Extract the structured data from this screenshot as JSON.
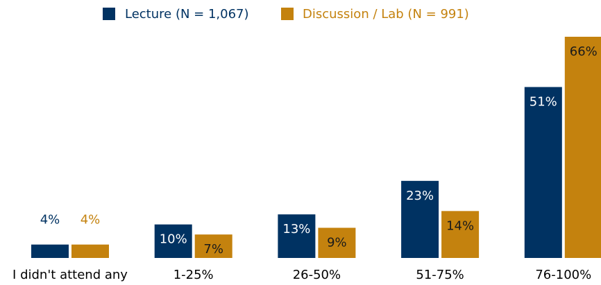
{
  "chart_data": {
    "type": "bar",
    "categories": [
      "I didn't attend any",
      "1-25%",
      "26-50%",
      "51-75%",
      "76-100%"
    ],
    "series": [
      {
        "name": "Lecture (N = 1,067)",
        "color": "#003262",
        "values": [
          4,
          10,
          13,
          23,
          51
        ],
        "value_labels": [
          "4%",
          "10%",
          "13%",
          "23%",
          "51%"
        ]
      },
      {
        "name": "Discussion / Lab (N = 991)",
        "color": "#c4820e",
        "values": [
          4,
          7,
          9,
          14,
          66
        ],
        "value_labels": [
          "4%",
          "7%",
          "9%",
          "14%",
          "66%"
        ]
      }
    ],
    "legend": "top"
  }
}
